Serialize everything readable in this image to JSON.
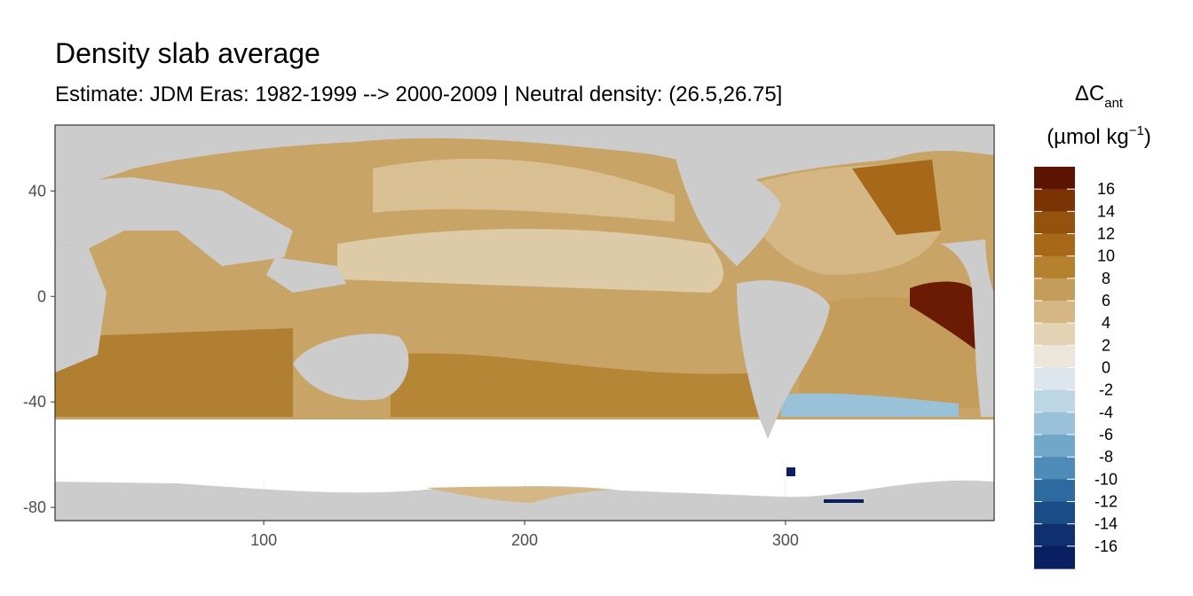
{
  "chart_data": {
    "type": "heatmap",
    "title": "Density slab average",
    "subtitle": "Estimate: JDM Eras: 1982-1999 --> 2000-2009 | Neutral density: (26.5,26.75]",
    "xlim": [
      20,
      380
    ],
    "ylim": [
      -85,
      65
    ],
    "x_ticks": [
      100,
      200,
      300
    ],
    "y_ticks": [
      40,
      0,
      -40,
      -80
    ],
    "grid": true,
    "legend": {
      "position": "right",
      "title_main": "ΔC",
      "title_sub": "ant",
      "unit_base": "(µmol kg",
      "unit_sup": "−1",
      "unit_close": ")",
      "labels": [
        "16",
        "14",
        "12",
        "10",
        "8",
        "6",
        "4",
        "2",
        "0",
        "-2",
        "-4",
        "-6",
        "-8",
        "-10",
        "-12",
        "-14",
        "-16"
      ],
      "colors": [
        "#5c1402",
        "#7b3306",
        "#94520d",
        "#a7681a",
        "#b5812f",
        "#c49d5a",
        "#d4b784",
        "#e3d2b3",
        "#ede6da",
        "#dce6ec",
        "#bdd6e4",
        "#99c2d9",
        "#71a7c9",
        "#4e8bb8",
        "#2c6a9f",
        "#1a4d87",
        "#0f2f6f",
        "#0a1f62"
      ]
    },
    "colors": {
      "land": "#cccccc",
      "no_data": "#ffffff",
      "ocean_mid": "#c9a467",
      "ocean_light": "#ddcba7",
      "ocean_dark": "#b07f31",
      "max": "#6b1b04",
      "negative": "#4e8bb8"
    }
  }
}
